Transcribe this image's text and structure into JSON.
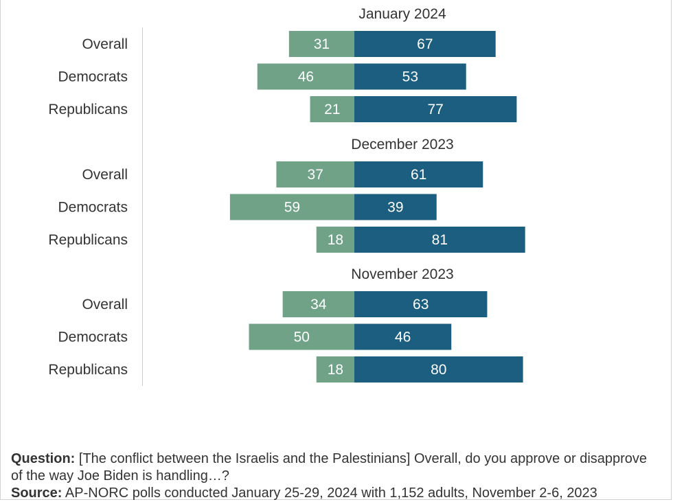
{
  "colors": {
    "disapprove": "#6fa287",
    "approve": "#1b5e80",
    "label_text": "#ffffff",
    "text": "#333333",
    "axis_line": "#cccccc"
  },
  "chart_data": {
    "type": "bar",
    "orientation": "horizontal-diverging",
    "categories": [
      "Overall",
      "Democrats",
      "Republicans"
    ],
    "panels": [
      {
        "title": "January 2024",
        "series": [
          {
            "values": [
              31,
              46,
              21
            ]
          },
          {
            "values": [
              67,
              53,
              77
            ]
          }
        ]
      },
      {
        "title": "December 2023",
        "series": [
          {
            "values": [
              37,
              59,
              18
            ]
          },
          {
            "values": [
              61,
              39,
              81
            ]
          }
        ]
      },
      {
        "title": "November 2023",
        "series": [
          {
            "values": [
              34,
              50,
              18
            ]
          },
          {
            "values": [
              63,
              46,
              80
            ]
          }
        ]
      }
    ],
    "xlim": [
      -100,
      100
    ],
    "grid": false,
    "legend": "none"
  },
  "notes": {
    "question_label": "Question:",
    "question_text": " [The conflict between the Israelis and the Palestinians] Overall, do you approve or disapprove of the way Joe Biden is handling…?",
    "source_label": "Source:",
    "source_text": " AP-NORC polls conducted January 25-29, 2024 with 1,152 adults, November 2-6, 2023"
  }
}
